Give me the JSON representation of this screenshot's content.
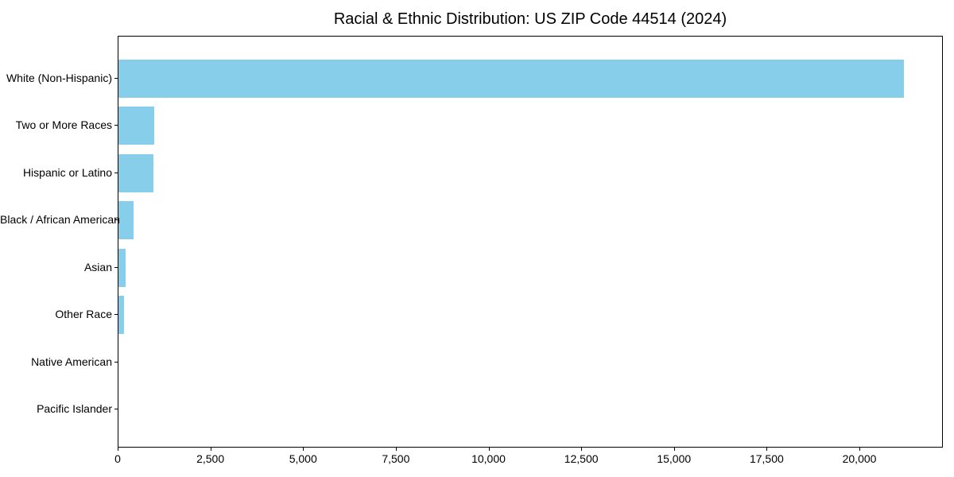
{
  "title": "Racial & Ethnic Distribution: US ZIP Code 44514 (2024)",
  "colors": {
    "bar": "#87CEEB",
    "spine": "#000000",
    "text": "#000000",
    "background": "#FFFFFF"
  },
  "chart_data": {
    "type": "bar",
    "orientation": "horizontal",
    "title": "Racial & Ethnic Distribution: US ZIP Code 44514 (2024)",
    "categories": [
      "White (Non-Hispanic)",
      "Two or More Races",
      "Hispanic or Latino",
      "Black / African American",
      "Asian",
      "Other Race",
      "Native American",
      "Pacific Islander"
    ],
    "values": [
      21180,
      965,
      945,
      400,
      200,
      155,
      0,
      0
    ],
    "xlabel": "",
    "ylabel": "",
    "xlim": [
      0,
      22250
    ],
    "x_ticks": [
      0,
      2500,
      5000,
      7500,
      10000,
      12500,
      15000,
      17500,
      20000
    ],
    "x_tick_labels": [
      "0",
      "2,500",
      "5,000",
      "7,500",
      "10,000",
      "12,500",
      "15,000",
      "17,500",
      "20,000"
    ],
    "grid": false,
    "legend": null,
    "bar_color": "#87CEEB"
  }
}
